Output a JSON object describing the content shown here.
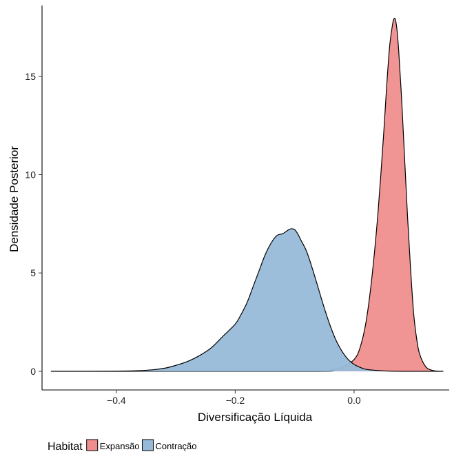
{
  "chart_data": {
    "type": "area",
    "subtype": "density",
    "xlabel": "Diversificação Líquida",
    "ylabel": "Densidade Posterior",
    "xlim": [
      -0.525,
      0.16
    ],
    "ylim": [
      -0.95,
      18.6
    ],
    "x_ticks": [
      -0.4,
      -0.2,
      0.0
    ],
    "x_tick_labels": [
      "−0.4",
      "−0.2",
      "0.0"
    ],
    "y_ticks": [
      0,
      5,
      10,
      15
    ],
    "y_tick_labels": [
      "0",
      "5",
      "10",
      "15"
    ],
    "grid": false,
    "legend": {
      "title": "Habitat",
      "position": "bottom-left",
      "entries": [
        "Expansão",
        "Contração"
      ]
    },
    "series": [
      {
        "name": "Expansão",
        "color": "#F08E8E",
        "x": [
          -0.51,
          -0.08,
          -0.04,
          -0.02,
          0.0,
          0.01,
          0.02,
          0.03,
          0.04,
          0.05,
          0.055,
          0.06,
          0.065,
          0.068,
          0.07,
          0.072,
          0.075,
          0.08,
          0.085,
          0.09,
          0.095,
          0.1,
          0.105,
          0.11,
          0.12,
          0.13,
          0.14,
          0.15
        ],
        "y": [
          0,
          0,
          0.05,
          0.2,
          0.6,
          1.2,
          2.5,
          4.8,
          8.0,
          12.2,
          14.6,
          16.6,
          17.7,
          17.95,
          17.8,
          17.4,
          16.3,
          13.8,
          10.8,
          7.8,
          5.2,
          3.0,
          1.7,
          0.9,
          0.25,
          0.06,
          0.01,
          0
        ]
      },
      {
        "name": "Contração",
        "color": "#97BAD9",
        "x": [
          -0.51,
          -0.4,
          -0.35,
          -0.32,
          -0.3,
          -0.28,
          -0.26,
          -0.24,
          -0.22,
          -0.2,
          -0.19,
          -0.18,
          -0.17,
          -0.16,
          -0.15,
          -0.14,
          -0.13,
          -0.12,
          -0.11,
          -0.105,
          -0.1,
          -0.095,
          -0.09,
          -0.08,
          -0.07,
          -0.06,
          -0.05,
          -0.04,
          -0.03,
          -0.02,
          -0.01,
          0.0,
          0.01,
          0.02,
          0.04,
          0.06,
          0.1,
          0.15
        ],
        "y": [
          0,
          0.01,
          0.05,
          0.15,
          0.3,
          0.5,
          0.8,
          1.2,
          1.8,
          2.4,
          2.9,
          3.5,
          4.3,
          5.1,
          5.9,
          6.5,
          6.9,
          7.0,
          7.2,
          7.25,
          7.2,
          7.0,
          6.7,
          6.1,
          5.2,
          4.2,
          3.2,
          2.3,
          1.55,
          1.0,
          0.6,
          0.35,
          0.2,
          0.1,
          0.04,
          0.01,
          0,
          0
        ]
      }
    ]
  }
}
